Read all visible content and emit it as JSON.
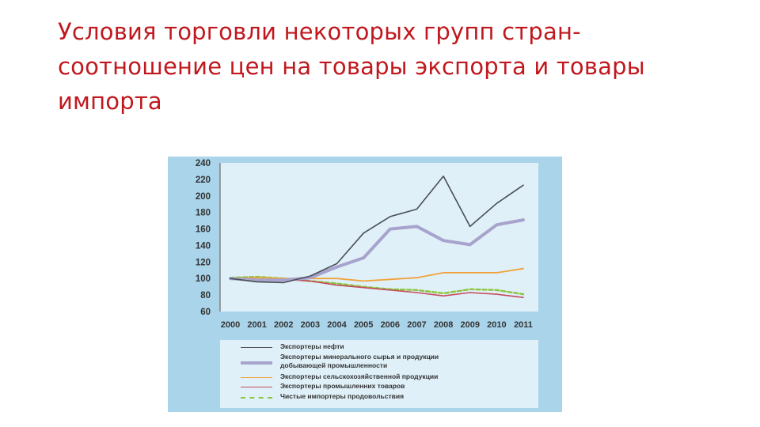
{
  "slide": {
    "title_lines": [
      "Условия торговли некоторых групп стран-",
      "соотношение цен на товары экспорта и товары",
      "импорта"
    ]
  },
  "colors": {
    "title": "#c0181e",
    "panel_background": "#a9d4ea",
    "plot_background": "#dff0f8"
  },
  "chart_data": {
    "type": "line",
    "x": [
      "2000",
      "2001",
      "2002",
      "2003",
      "2004",
      "2005",
      "2006",
      "2007",
      "2008",
      "2009",
      "2010",
      "2011"
    ],
    "ylim": [
      60,
      240
    ],
    "yticks": [
      60,
      80,
      100,
      120,
      140,
      160,
      180,
      200,
      220,
      240
    ],
    "grid": false,
    "legend_position": "bottom",
    "series": [
      {
        "name": "Экспортеры нефти",
        "color": "#4a4e57",
        "style": "solid-thin",
        "values": [
          100,
          96,
          95,
          103,
          118,
          155,
          175,
          184,
          224,
          163,
          191,
          213
        ]
      },
      {
        "name": "Экспортеры минерального сырья и продукции добывающей промышленности",
        "label_lines": [
          "Экспортеры минерального сырья и продукции",
          "добывающей промышленности"
        ],
        "color": "#a7a3cd",
        "style": "solid-thick",
        "values": [
          100,
          98,
          98,
          101,
          114,
          125,
          160,
          163,
          146,
          141,
          165,
          171
        ]
      },
      {
        "name": "Экспортеры сельскохозяйственной продукции",
        "color": "#f0a23c",
        "style": "solid",
        "values": [
          100,
          101,
          100,
          100,
          100,
          97,
          99,
          101,
          107,
          107,
          107,
          112
        ]
      },
      {
        "name": "Экспортеры промышленних товаров",
        "color": "#c64a5e",
        "style": "solid-thin",
        "values": [
          100,
          99,
          99,
          97,
          92,
          89,
          86,
          83,
          79,
          83,
          81,
          77
        ]
      },
      {
        "name": "Чистые импортеры продовольствия",
        "color": "#8cc43c",
        "style": "dashed",
        "values": [
          101,
          102,
          100,
          97,
          94,
          90,
          87,
          86,
          82,
          87,
          86,
          81
        ]
      }
    ]
  }
}
